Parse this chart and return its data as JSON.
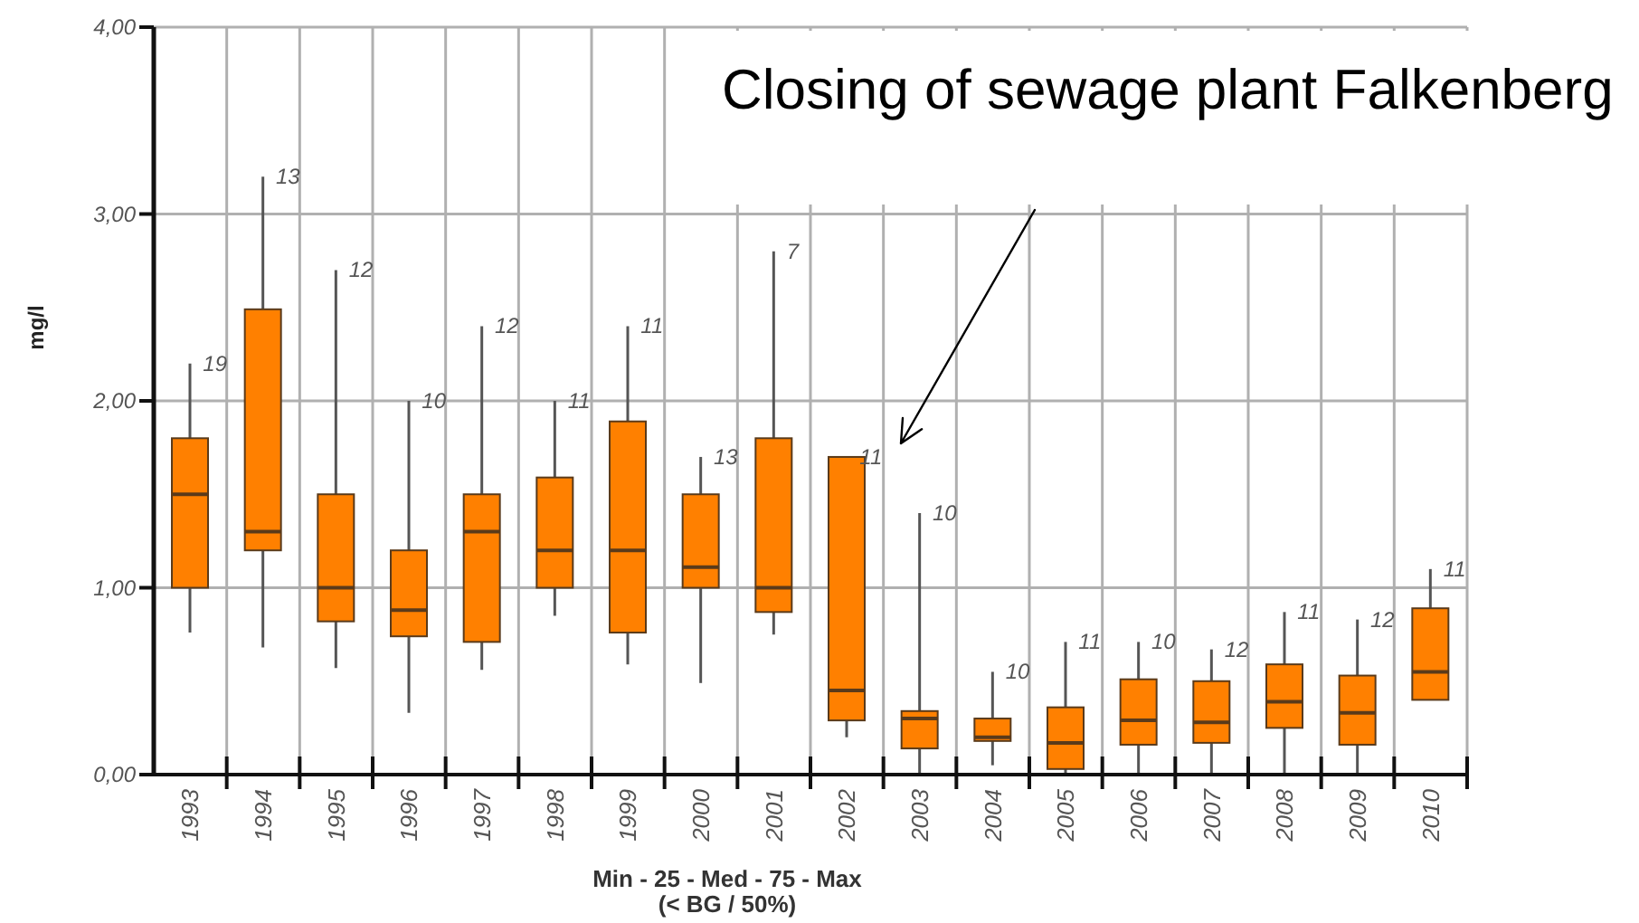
{
  "chart_data": {
    "type": "box",
    "xlabel": "Min - 25 - Med - 75 - Max\n(< BG / 50%)",
    "ylabel": "mg/l",
    "categories": [
      "1993",
      "1994",
      "1995",
      "1996",
      "1997",
      "1998",
      "1999",
      "2000",
      "2001",
      "2002",
      "2003",
      "2004",
      "2005",
      "2006",
      "2007",
      "2008",
      "2009",
      "2010"
    ],
    "color": "#ff8000",
    "boxes": [
      {
        "low": 0.76,
        "q1": 1.0,
        "median": 1.5,
        "q3": 1.8,
        "high": 2.2
      },
      {
        "low": 0.68,
        "q1": 1.2,
        "median": 1.3,
        "q3": 2.49,
        "high": 3.2
      },
      {
        "low": 0.57,
        "q1": 0.82,
        "median": 1.0,
        "q3": 1.5,
        "high": 2.7
      },
      {
        "low": 0.33,
        "q1": 0.74,
        "median": 0.88,
        "q3": 1.2,
        "high": 2.0
      },
      {
        "low": 0.56,
        "q1": 0.71,
        "median": 1.3,
        "q3": 1.5,
        "high": 2.4
      },
      {
        "low": 0.85,
        "q1": 1.0,
        "median": 1.2,
        "q3": 1.59,
        "high": 2.0
      },
      {
        "low": 0.59,
        "q1": 0.76,
        "median": 1.2,
        "q3": 1.89,
        "high": 2.4
      },
      {
        "low": 0.49,
        "q1": 1.0,
        "median": 1.11,
        "q3": 1.5,
        "high": 1.7
      },
      {
        "low": 0.75,
        "q1": 0.87,
        "median": 1.0,
        "q3": 1.8,
        "high": 2.8
      },
      {
        "low": 0.2,
        "q1": 0.29,
        "median": 0.45,
        "q3": 1.7,
        "high": 1.7
      },
      {
        "low": 0.0,
        "q1": 0.14,
        "median": 0.3,
        "q3": 0.34,
        "high": 1.4
      },
      {
        "low": 0.05,
        "q1": 0.18,
        "median": 0.2,
        "q3": 0.3,
        "high": 0.55
      },
      {
        "low": 0.0,
        "q1": 0.03,
        "median": 0.17,
        "q3": 0.36,
        "high": 0.71
      },
      {
        "low": 0.0,
        "q1": 0.16,
        "median": 0.29,
        "q3": 0.51,
        "high": 0.71
      },
      {
        "low": 0.0,
        "q1": 0.17,
        "median": 0.28,
        "q3": 0.5,
        "high": 0.67
      },
      {
        "low": 0.0,
        "q1": 0.25,
        "median": 0.39,
        "q3": 0.59,
        "high": 0.87
      },
      {
        "low": 0.0,
        "q1": 0.16,
        "median": 0.33,
        "q3": 0.53,
        "high": 0.83
      },
      {
        "low": 0.4,
        "q1": 0.4,
        "median": 0.55,
        "q3": 0.89,
        "high": 1.1
      }
    ],
    "ylim": [
      0,
      4
    ],
    "yticks": [
      {
        "value": 0,
        "label": "0,00"
      },
      {
        "value": 1,
        "label": "1,00"
      },
      {
        "value": 2,
        "label": "2,00"
      },
      {
        "value": 3,
        "label": "3,00"
      },
      {
        "value": 4,
        "label": "4,00"
      }
    ],
    "grid": true,
    "annotations": [
      "Closing of sewage plant Falkenberg",
      {
        "text": "19",
        "x": "1993",
        "y": 2.2
      },
      {
        "text": "13",
        "x": "1994",
        "y": 3.2
      },
      {
        "text": "12",
        "x": "1995",
        "y": 2.7
      },
      {
        "text": "10",
        "x": "1996",
        "y": 2.0
      },
      {
        "text": "12",
        "x": "1997",
        "y": 2.4
      },
      {
        "text": "11",
        "x": "1998",
        "y": 2.0
      },
      {
        "text": "11",
        "x": "1999",
        "y": 2.4
      },
      {
        "text": "13",
        "x": "2000",
        "y": 1.7
      },
      {
        "text": "7",
        "x": "2001",
        "y": 2.8
      },
      {
        "text": "11",
        "x": "2002",
        "y": 1.7
      },
      {
        "text": "10",
        "x": "2003",
        "y": 1.4
      },
      {
        "text": "10",
        "x": "2004",
        "y": 0.55
      },
      {
        "text": "11",
        "x": "2005",
        "y": 0.71
      },
      {
        "text": "10",
        "x": "2006",
        "y": 0.71
      },
      {
        "text": "12",
        "x": "2007",
        "y": 0.67
      },
      {
        "text": "11",
        "x": "2008",
        "y": 0.87
      },
      {
        "text": "12",
        "x": "2009",
        "y": 0.83
      },
      {
        "text": "11",
        "x": "2010",
        "y": 1.1
      }
    ]
  }
}
